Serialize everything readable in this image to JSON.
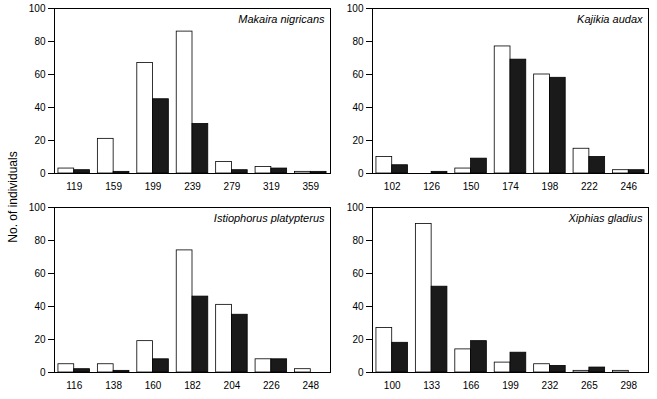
{
  "ylabel": "No. of individuals",
  "chart_data": [
    {
      "type": "bar",
      "title": "Makaira nigricans",
      "categories": [
        "119",
        "159",
        "199",
        "239",
        "279",
        "319",
        "359"
      ],
      "series": [
        {
          "color": "#ffffff",
          "values": [
            3,
            21,
            67,
            86,
            7,
            4,
            1
          ]
        },
        {
          "color": "#1a1a1a",
          "values": [
            2,
            1,
            45,
            30,
            2,
            3,
            1
          ]
        }
      ],
      "ylim": [
        0,
        100
      ],
      "yticks": [
        0,
        20,
        40,
        60,
        80,
        100
      ]
    },
    {
      "type": "bar",
      "title": "Kajikia audax",
      "categories": [
        "102",
        "126",
        "150",
        "174",
        "198",
        "222",
        "246"
      ],
      "series": [
        {
          "color": "#ffffff",
          "values": [
            10,
            0,
            3,
            77,
            60,
            15,
            2
          ]
        },
        {
          "color": "#1a1a1a",
          "values": [
            5,
            1,
            9,
            69,
            58,
            10,
            2
          ]
        }
      ],
      "ylim": [
        0,
        100
      ],
      "yticks": [
        0,
        20,
        40,
        60,
        80,
        100
      ]
    },
    {
      "type": "bar",
      "title": "Istiophorus platypterus",
      "categories": [
        "116",
        "138",
        "160",
        "182",
        "204",
        "226",
        "248"
      ],
      "series": [
        {
          "color": "#ffffff",
          "values": [
            5,
            5,
            19,
            74,
            41,
            8,
            2
          ]
        },
        {
          "color": "#1a1a1a",
          "values": [
            2,
            1,
            8,
            46,
            35,
            8,
            0
          ]
        }
      ],
      "ylim": [
        0,
        100
      ],
      "yticks": [
        0,
        20,
        40,
        60,
        80,
        100
      ]
    },
    {
      "type": "bar",
      "title": "Xiphias gladius",
      "categories": [
        "100",
        "133",
        "166",
        "199",
        "232",
        "265",
        "298"
      ],
      "series": [
        {
          "color": "#ffffff",
          "values": [
            27,
            90,
            14,
            6,
            5,
            1,
            1
          ]
        },
        {
          "color": "#1a1a1a",
          "values": [
            18,
            52,
            19,
            12,
            4,
            3,
            0
          ]
        }
      ],
      "ylim": [
        0,
        100
      ],
      "yticks": [
        0,
        20,
        40,
        60,
        80,
        100
      ]
    }
  ]
}
